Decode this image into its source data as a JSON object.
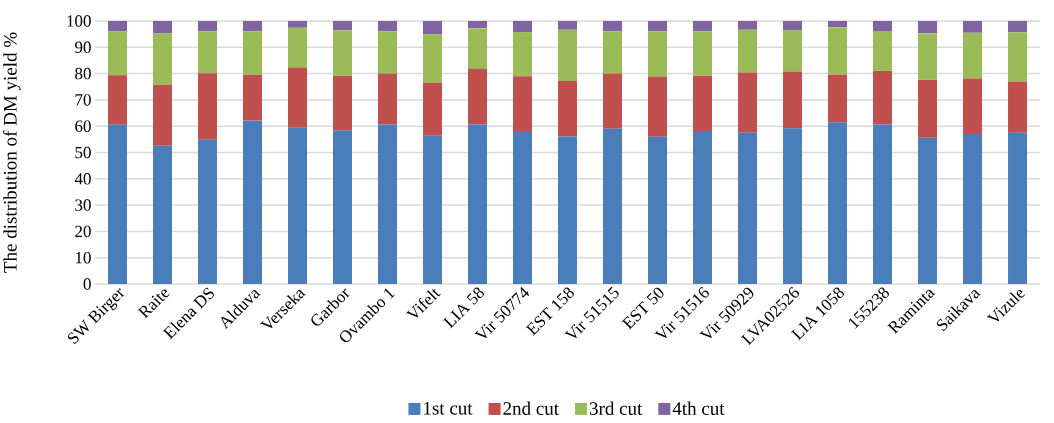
{
  "chart_data": {
    "type": "bar",
    "stacked": true,
    "ylabel": "The distribution of DM yield %",
    "categories": [
      "SW Birger",
      "Raite",
      "Elena DS",
      "Alduva",
      "Verseka",
      "Garbor",
      "Ovambo 1",
      "Vifelt",
      "LIA 58",
      "Vir 50774",
      "EST 158",
      "Vir 51515",
      "EST 50",
      "Vir 51516",
      "Vir 50929",
      "LVA02526",
      "LIA 1058",
      "155238",
      "Raminta",
      "Saikava",
      "Vizule"
    ],
    "series": [
      {
        "name": "1st cut",
        "color": "#4a7ebb",
        "values": [
          60.6,
          52.6,
          54.8,
          62.1,
          59.4,
          58.5,
          60.6,
          56.4,
          60.6,
          58.2,
          56.1,
          59.0,
          56.0,
          58.2,
          57.5,
          59.2,
          61.5,
          60.6,
          55.6,
          57.0,
          57.5
        ]
      },
      {
        "name": "2nd cut",
        "color": "#c0504d",
        "values": [
          18.8,
          23.2,
          25.3,
          17.5,
          22.9,
          20.7,
          19.4,
          20.1,
          21.2,
          20.8,
          21.1,
          21.0,
          22.9,
          21.0,
          22.9,
          21.6,
          18.1,
          20.4,
          22.1,
          21.1,
          19.5
        ]
      },
      {
        "name": "3rd cut",
        "color": "#9bbb59",
        "values": [
          16.6,
          19.4,
          16.0,
          16.5,
          15.1,
          17.3,
          16.1,
          18.5,
          15.4,
          16.8,
          19.5,
          16.1,
          17.2,
          16.9,
          16.3,
          15.8,
          18.0,
          15.2,
          17.6,
          17.4,
          18.7
        ]
      },
      {
        "name": "4th cut",
        "color": "#8064a2",
        "values": [
          4.0,
          4.8,
          3.9,
          3.9,
          2.6,
          3.5,
          3.9,
          5.0,
          2.8,
          4.2,
          3.3,
          3.9,
          3.9,
          3.9,
          3.3,
          3.4,
          2.4,
          3.8,
          4.7,
          4.5,
          4.3
        ]
      }
    ],
    "ylim": [
      0,
      100
    ],
    "yticks": [
      0,
      10,
      20,
      30,
      40,
      50,
      60,
      70,
      80,
      90,
      100
    ],
    "grid": "y",
    "legend": "bottom"
  }
}
